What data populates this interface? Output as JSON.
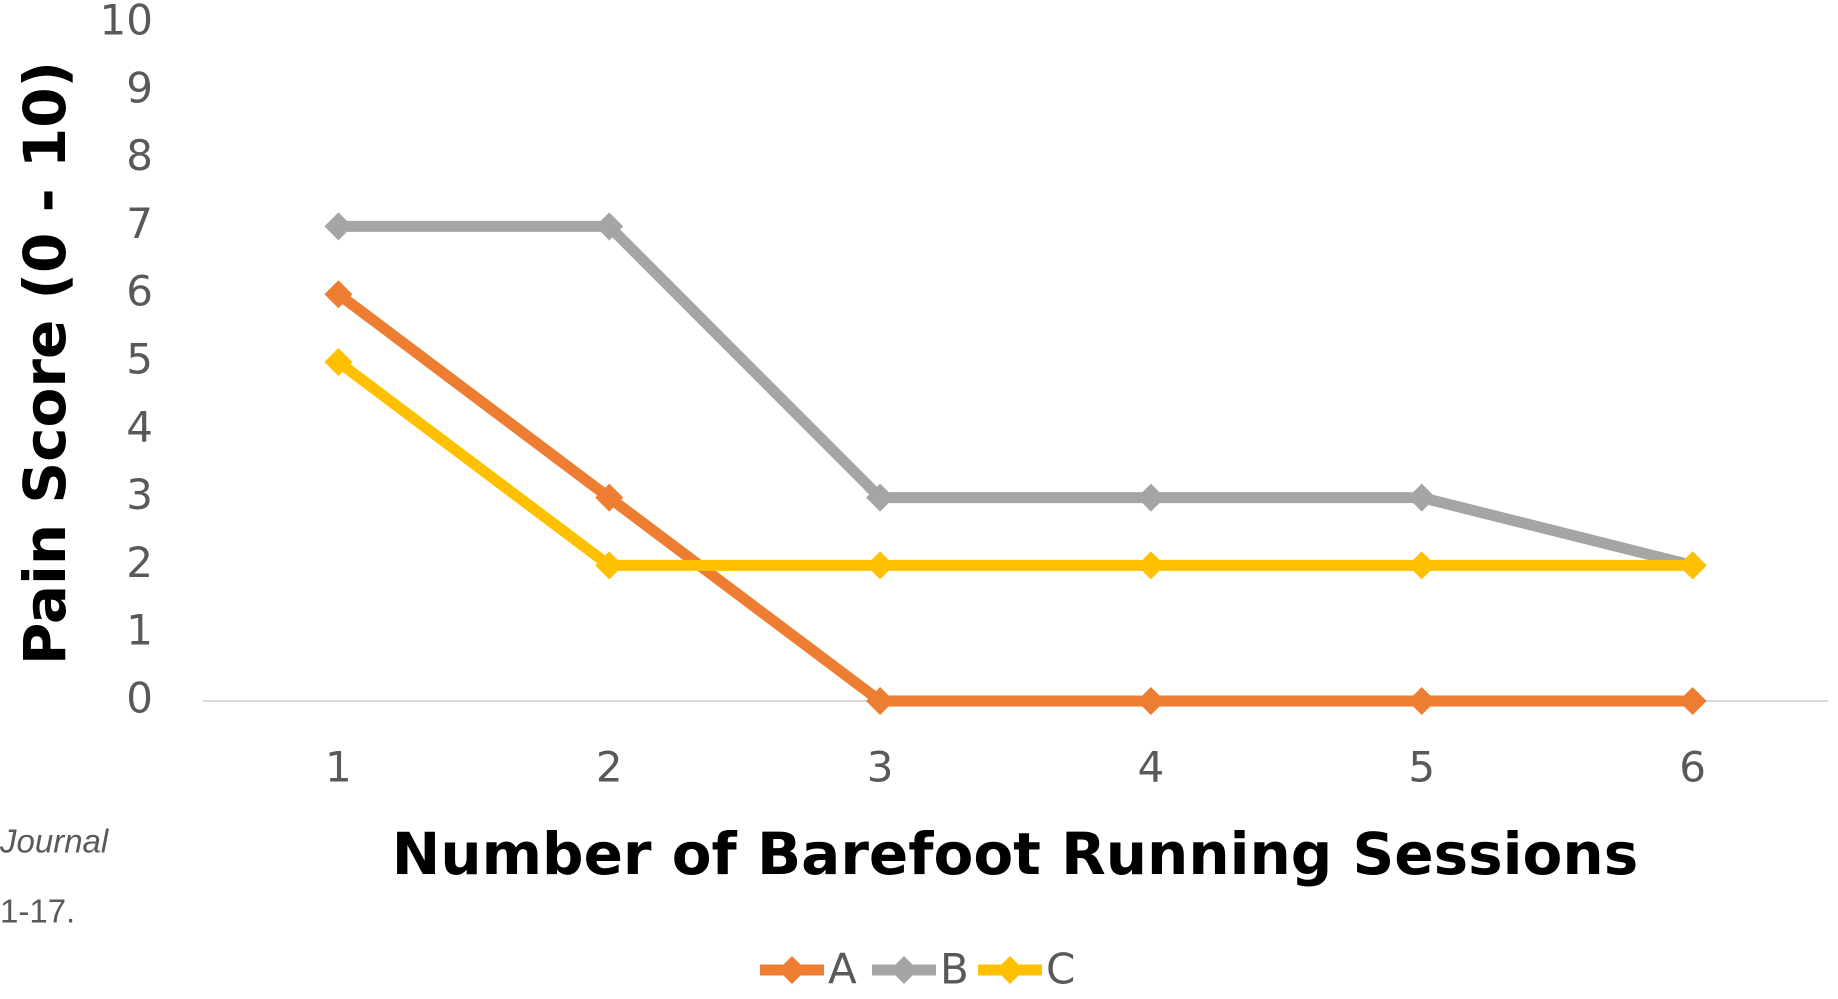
{
  "chart_data": {
    "type": "line",
    "x_label": "Number of Barefoot Running Sessions",
    "y_label": "Pain Score (0 - 10)",
    "annotations": [
      "Journal",
      "1-17."
    ],
    "x": [
      1,
      2,
      3,
      4,
      5,
      6
    ],
    "xlim": [
      0.5,
      6.5
    ],
    "xticks": [
      1,
      2,
      3,
      4,
      5,
      6
    ],
    "ylim": [
      0,
      10
    ],
    "yticks": [
      0,
      1,
      2,
      3,
      4,
      5,
      6,
      7,
      8,
      9,
      10
    ],
    "grid": false,
    "legend": "bottom",
    "series": [
      {
        "name": "A",
        "color": "#ED7D31",
        "values": [
          6,
          3,
          0,
          0,
          0,
          0
        ]
      },
      {
        "name": "B",
        "color": "#A5A5A5",
        "values": [
          7,
          7,
          3,
          3,
          3,
          2
        ]
      },
      {
        "name": "C",
        "color": "#FFC000",
        "values": [
          5,
          2,
          2,
          2,
          2,
          2
        ]
      }
    ]
  }
}
